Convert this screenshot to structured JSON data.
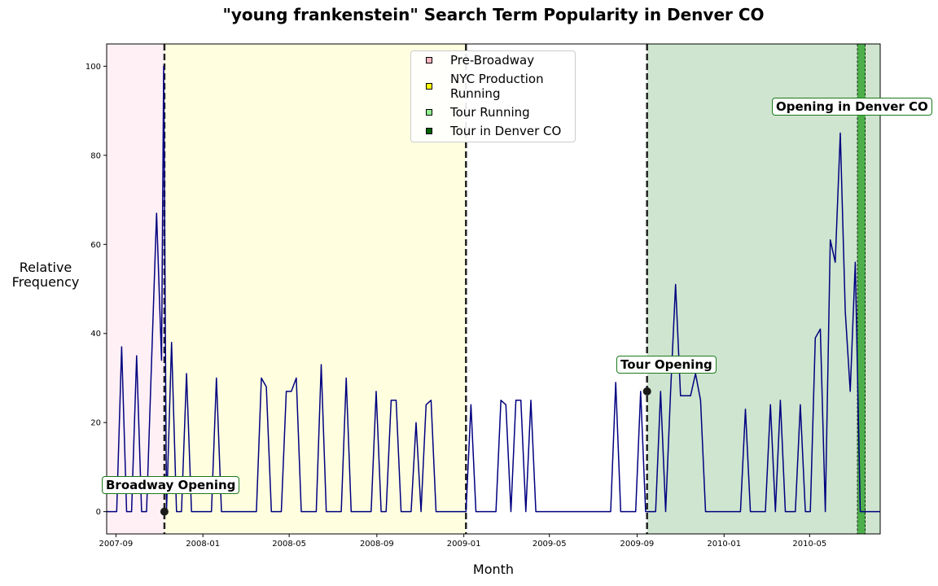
{
  "chart_data": {
    "type": "line",
    "title": "\"young frankenstein\" Search Term Popularity in Denver CO",
    "xlabel": "Month",
    "ylabel": "Relative\nFrequency",
    "x_ticks": [
      "2007-09",
      "2008-01",
      "2008-05",
      "2008-09",
      "2009-01",
      "2009-05",
      "2009-09",
      "2010-01",
      "2010-05"
    ],
    "y_ticks": [
      0,
      20,
      40,
      60,
      80,
      100
    ],
    "xlim": [
      "2007-08-19",
      "2010-08-08"
    ],
    "ylim": [
      -5,
      105
    ],
    "grid": false,
    "legend_position": "top-center",
    "regions": [
      {
        "label": "Pre-Broadway",
        "start": "2007-08-19",
        "end": "2007-11-08",
        "color": "#fff0f5",
        "swatch": "#ffb6c1"
      },
      {
        "label": "NYC Production Running",
        "start": "2007-11-08",
        "end": "2009-01-04",
        "color": "#ffffe0",
        "swatch": "#ffff00"
      },
      {
        "label": "Tour Running",
        "start": "2009-09-15",
        "end": "2010-08-08",
        "color": "#cfe5cf",
        "swatch": "#90ee90"
      },
      {
        "label": "Tour in Denver CO",
        "start": "2010-07-07",
        "end": "2010-07-18",
        "color": "#4daf4a",
        "swatch": "#006400"
      }
    ],
    "vlines": [
      "2007-11-08",
      "2009-01-04",
      "2009-09-15"
    ],
    "annotations": [
      {
        "text": "Broadway Opening",
        "x": "2007-11-08",
        "y": 0
      },
      {
        "text": "Tour Opening",
        "x": "2009-09-15",
        "y": 27
      },
      {
        "text": "Opening in Denver CO",
        "x": "2010-07-07",
        "y": 85
      }
    ],
    "series": [
      {
        "color": "#000080",
        "points": [
          [
            "2007-08-19",
            0
          ],
          [
            "2007-08-26",
            0
          ],
          [
            "2007-09-02",
            0
          ],
          [
            "2007-09-09",
            37
          ],
          [
            "2007-09-16",
            0
          ],
          [
            "2007-09-23",
            0
          ],
          [
            "2007-09-30",
            35
          ],
          [
            "2007-10-07",
            0
          ],
          [
            "2007-10-14",
            0
          ],
          [
            "2007-10-21",
            34
          ],
          [
            "2007-10-28",
            67
          ],
          [
            "2007-11-04",
            34
          ],
          [
            "2007-11-07",
            100
          ],
          [
            "2007-11-11",
            0
          ],
          [
            "2007-11-18",
            38
          ],
          [
            "2007-11-25",
            0
          ],
          [
            "2007-12-02",
            0
          ],
          [
            "2007-12-09",
            31
          ],
          [
            "2007-12-16",
            0
          ],
          [
            "2007-12-23",
            0
          ],
          [
            "2007-12-30",
            0
          ],
          [
            "2008-01-06",
            0
          ],
          [
            "2008-01-13",
            0
          ],
          [
            "2008-01-20",
            30
          ],
          [
            "2008-01-27",
            0
          ],
          [
            "2008-02-03",
            0
          ],
          [
            "2008-02-10",
            0
          ],
          [
            "2008-02-17",
            0
          ],
          [
            "2008-02-24",
            0
          ],
          [
            "2008-03-02",
            0
          ],
          [
            "2008-03-09",
            0
          ],
          [
            "2008-03-16",
            0
          ],
          [
            "2008-03-23",
            30
          ],
          [
            "2008-03-30",
            28
          ],
          [
            "2008-04-06",
            0
          ],
          [
            "2008-04-13",
            0
          ],
          [
            "2008-04-20",
            0
          ],
          [
            "2008-04-27",
            27
          ],
          [
            "2008-05-04",
            27
          ],
          [
            "2008-05-11",
            30
          ],
          [
            "2008-05-18",
            0
          ],
          [
            "2008-05-25",
            0
          ],
          [
            "2008-06-01",
            0
          ],
          [
            "2008-06-08",
            0
          ],
          [
            "2008-06-15",
            33
          ],
          [
            "2008-06-22",
            0
          ],
          [
            "2008-06-29",
            0
          ],
          [
            "2008-07-06",
            0
          ],
          [
            "2008-07-13",
            0
          ],
          [
            "2008-07-20",
            30
          ],
          [
            "2008-07-27",
            0
          ],
          [
            "2008-08-03",
            0
          ],
          [
            "2008-08-10",
            0
          ],
          [
            "2008-08-17",
            0
          ],
          [
            "2008-08-24",
            0
          ],
          [
            "2008-08-31",
            27
          ],
          [
            "2008-09-07",
            0
          ],
          [
            "2008-09-14",
            0
          ],
          [
            "2008-09-21",
            25
          ],
          [
            "2008-09-28",
            25
          ],
          [
            "2008-10-05",
            0
          ],
          [
            "2008-10-12",
            0
          ],
          [
            "2008-10-19",
            0
          ],
          [
            "2008-10-26",
            20
          ],
          [
            "2008-11-02",
            0
          ],
          [
            "2008-11-09",
            24
          ],
          [
            "2008-11-16",
            25
          ],
          [
            "2008-11-23",
            0
          ],
          [
            "2008-11-30",
            0
          ],
          [
            "2008-12-07",
            0
          ],
          [
            "2008-12-14",
            0
          ],
          [
            "2008-12-21",
            0
          ],
          [
            "2008-12-28",
            0
          ],
          [
            "2009-01-04",
            0
          ],
          [
            "2009-01-11",
            24
          ],
          [
            "2009-01-18",
            0
          ],
          [
            "2009-01-25",
            0
          ],
          [
            "2009-02-01",
            0
          ],
          [
            "2009-02-08",
            0
          ],
          [
            "2009-02-15",
            0
          ],
          [
            "2009-02-22",
            25
          ],
          [
            "2009-03-01",
            24
          ],
          [
            "2009-03-08",
            0
          ],
          [
            "2009-03-15",
            25
          ],
          [
            "2009-03-22",
            25
          ],
          [
            "2009-03-29",
            0
          ],
          [
            "2009-04-05",
            25
          ],
          [
            "2009-04-12",
            0
          ],
          [
            "2009-04-19",
            0
          ],
          [
            "2009-04-26",
            0
          ],
          [
            "2009-05-03",
            0
          ],
          [
            "2009-05-10",
            0
          ],
          [
            "2009-05-17",
            0
          ],
          [
            "2009-05-24",
            0
          ],
          [
            "2009-05-31",
            0
          ],
          [
            "2009-06-07",
            0
          ],
          [
            "2009-06-14",
            0
          ],
          [
            "2009-06-21",
            0
          ],
          [
            "2009-06-28",
            0
          ],
          [
            "2009-07-05",
            0
          ],
          [
            "2009-07-12",
            0
          ],
          [
            "2009-07-19",
            0
          ],
          [
            "2009-07-26",
            0
          ],
          [
            "2009-08-02",
            29
          ],
          [
            "2009-08-09",
            0
          ],
          [
            "2009-08-16",
            0
          ],
          [
            "2009-08-23",
            0
          ],
          [
            "2009-08-30",
            0
          ],
          [
            "2009-09-06",
            27
          ],
          [
            "2009-09-13",
            0
          ],
          [
            "2009-09-20",
            0
          ],
          [
            "2009-09-27",
            0
          ],
          [
            "2009-10-04",
            27
          ],
          [
            "2009-10-11",
            0
          ],
          [
            "2009-10-18",
            27
          ],
          [
            "2009-10-25",
            51
          ],
          [
            "2009-11-01",
            26
          ],
          [
            "2009-11-08",
            26
          ],
          [
            "2009-11-15",
            26
          ],
          [
            "2009-11-22",
            31
          ],
          [
            "2009-11-29",
            25
          ],
          [
            "2009-12-06",
            0
          ],
          [
            "2009-12-13",
            0
          ],
          [
            "2009-12-20",
            0
          ],
          [
            "2009-12-27",
            0
          ],
          [
            "2010-01-03",
            0
          ],
          [
            "2010-01-10",
            0
          ],
          [
            "2010-01-17",
            0
          ],
          [
            "2010-01-24",
            0
          ],
          [
            "2010-01-31",
            23
          ],
          [
            "2010-02-07",
            0
          ],
          [
            "2010-02-14",
            0
          ],
          [
            "2010-02-21",
            0
          ],
          [
            "2010-02-28",
            0
          ],
          [
            "2010-03-07",
            24
          ],
          [
            "2010-03-14",
            0
          ],
          [
            "2010-03-21",
            25
          ],
          [
            "2010-03-28",
            0
          ],
          [
            "2010-04-04",
            0
          ],
          [
            "2010-04-11",
            0
          ],
          [
            "2010-04-18",
            24
          ],
          [
            "2010-04-25",
            0
          ],
          [
            "2010-05-02",
            0
          ],
          [
            "2010-05-09",
            39
          ],
          [
            "2010-05-16",
            41
          ],
          [
            "2010-05-23",
            0
          ],
          [
            "2010-05-30",
            61
          ],
          [
            "2010-06-06",
            56
          ],
          [
            "2010-06-13",
            85
          ],
          [
            "2010-06-20",
            45
          ],
          [
            "2010-06-27",
            27
          ],
          [
            "2010-07-04",
            56
          ],
          [
            "2010-07-11",
            0
          ],
          [
            "2010-07-18",
            0
          ],
          [
            "2010-07-25",
            0
          ],
          [
            "2010-08-01",
            0
          ],
          [
            "2010-08-08",
            0
          ]
        ]
      }
    ]
  }
}
